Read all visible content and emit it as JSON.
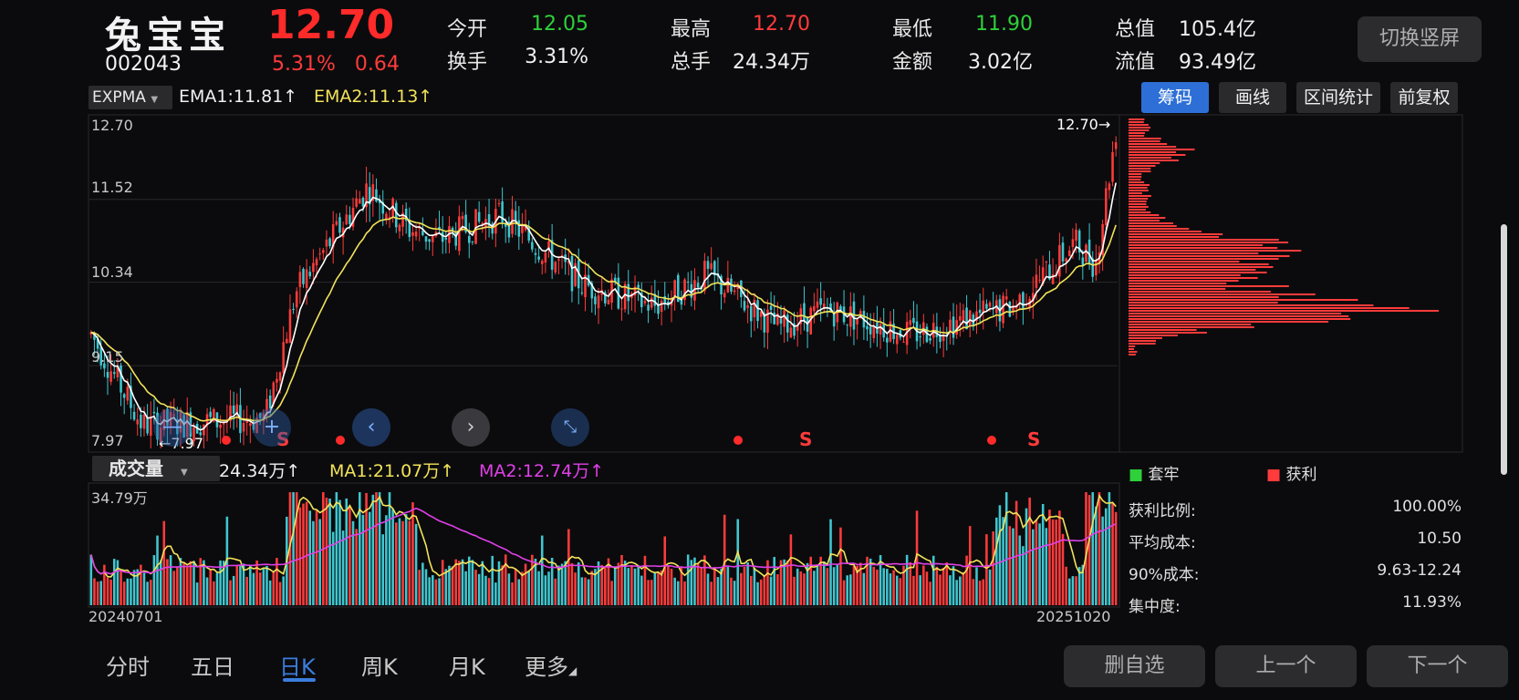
{
  "header": {
    "name": "兔宝宝",
    "code": "002043",
    "price": "12.70",
    "change_pct": "5.31%",
    "change_amt": "0.64",
    "quotes": [
      {
        "label": "今开",
        "value": "12.05",
        "color": "green"
      },
      {
        "label": "换手",
        "value": "3.31%",
        "color": "white"
      },
      {
        "label": "最高",
        "value": "12.70",
        "color": "red"
      },
      {
        "label": "总手",
        "value": "24.34万",
        "color": "white"
      },
      {
        "label": "最低",
        "value": "11.90",
        "color": "green"
      },
      {
        "label": "金额",
        "value": "3.02亿",
        "color": "white"
      },
      {
        "label": "总值",
        "value": "105.4亿",
        "color": "white"
      },
      {
        "label": "流值",
        "value": "93.49亿",
        "color": "white"
      }
    ],
    "switch_button": "切换竖屏"
  },
  "toolbar": {
    "indicator": "EXPMA",
    "ema1": "EMA1:11.81",
    "ema2": "EMA2:11.13",
    "buttons": [
      "筹码",
      "画线",
      "区间统计",
      "前复权"
    ]
  },
  "kline": {
    "y_ticks": [
      "12.70",
      "11.52",
      "10.34",
      "9.15",
      "7.97"
    ],
    "high_label": "12.70",
    "low_label": "7.97",
    "markers": [
      "S",
      "S",
      "S"
    ]
  },
  "volume": {
    "indicator": "成交量",
    "vol": "24.34万",
    "ma1": "MA1:21.07万",
    "ma2": "MA2:12.74万",
    "max_label": "34.79万",
    "date_start": "20240701",
    "date_end": "20251020"
  },
  "chip_stats": {
    "legend_trapped": "套牢",
    "legend_profit": "获利",
    "rows": [
      {
        "label": "获利比例:",
        "value": "100.00%"
      },
      {
        "label": "平均成本:",
        "value": "10.50"
      },
      {
        "label": "90%成本:",
        "value": "9.63-12.24"
      },
      {
        "label": "集中度:",
        "value": "11.93%"
      }
    ]
  },
  "tabs": [
    "分时",
    "五日",
    "日K",
    "周K",
    "月K",
    "更多"
  ],
  "bottom_buttons": [
    "删自选",
    "上一个",
    "下一个"
  ],
  "colors": {
    "up": "#ff3b3b",
    "down": "#3fc7d0",
    "ema1": "#ffffff",
    "ema2": "#f2e35a",
    "ma2": "#e040e8",
    "accent": "#2d6fd6"
  }
}
